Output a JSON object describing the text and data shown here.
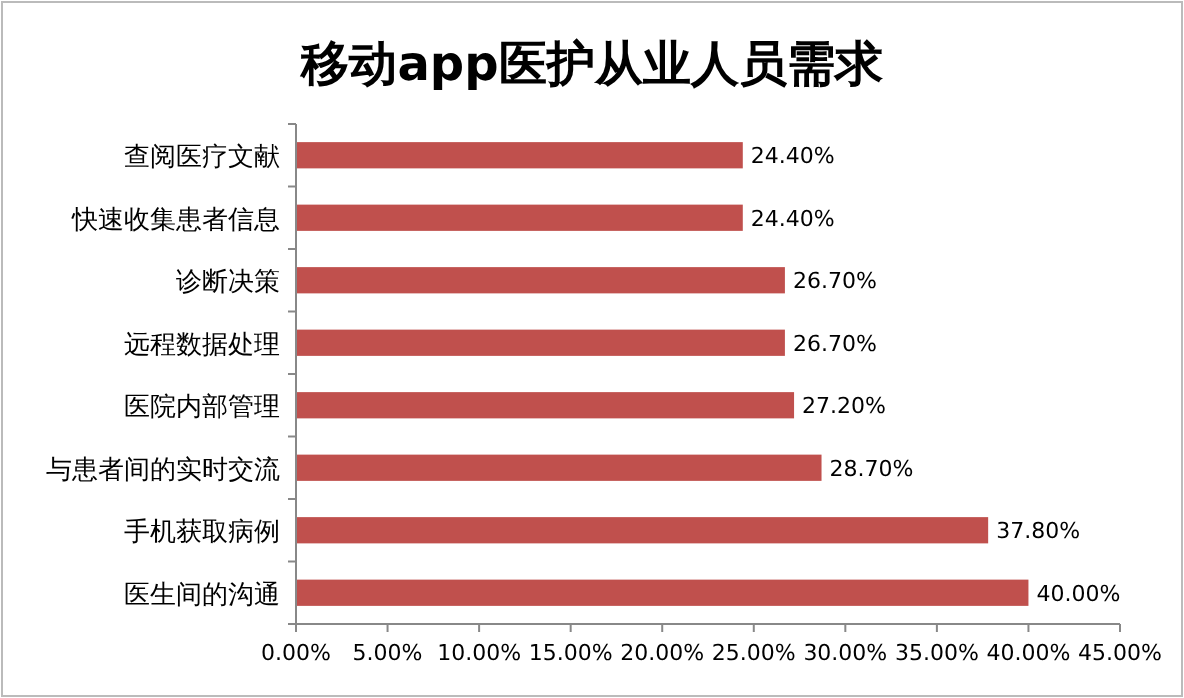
{
  "chart_data": {
    "type": "bar",
    "orientation": "horizontal",
    "title": "移动app医护从业人员需求",
    "categories": [
      "查阅医疗文献",
      "快速收集患者信息",
      "诊断决策",
      "远程数据处理",
      "医院内部管理",
      "与患者间的实时交流",
      "手机获取病例",
      "医生间的沟通"
    ],
    "values": [
      24.4,
      24.4,
      26.7,
      26.7,
      27.2,
      28.7,
      37.8,
      40.0
    ],
    "value_labels": [
      "24.40%",
      "24.40%",
      "26.70%",
      "26.70%",
      "27.20%",
      "28.70%",
      "37.80%",
      "40.00%"
    ],
    "color": "#c0504d",
    "xlim": [
      0,
      45
    ],
    "xticks": [
      {
        "value": 0,
        "label": "0.00%"
      },
      {
        "value": 5,
        "label": "5.00%"
      },
      {
        "value": 10,
        "label": "10.00%"
      },
      {
        "value": 15,
        "label": "15.00%"
      },
      {
        "value": 20,
        "label": "20.00%"
      },
      {
        "value": 25,
        "label": "25.00%"
      },
      {
        "value": 30,
        "label": "30.00%"
      },
      {
        "value": 35,
        "label": "35.00%"
      },
      {
        "value": 40,
        "label": "40.00%"
      },
      {
        "value": 45,
        "label": "45.00%"
      }
    ],
    "grid": false
  }
}
